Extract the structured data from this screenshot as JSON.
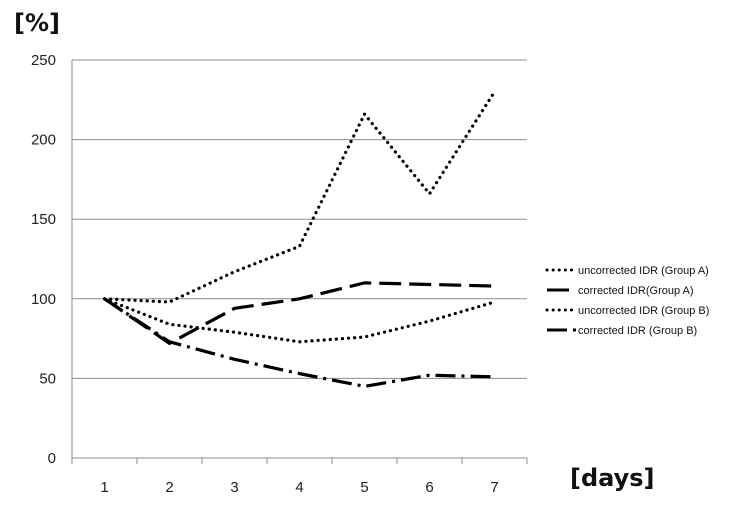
{
  "chart_data": {
    "type": "line",
    "ylabel": "[%]",
    "xlabel": "[days]",
    "categories": [
      "1",
      "2",
      "3",
      "4",
      "5",
      "6",
      "7"
    ],
    "ylim": [
      0,
      250
    ],
    "yticks": [
      "0",
      "50",
      "100",
      "150",
      "200",
      "250"
    ],
    "grid": "horizontal",
    "legend_position": "right",
    "series": [
      {
        "name": "uncorrected IDR (Group A)",
        "style": "dotted",
        "color": "#000000",
        "values": [
          100,
          98,
          117,
          133,
          216,
          166,
          230
        ]
      },
      {
        "name": "corrected IDR(Group A)",
        "style": "solid",
        "color": "#000000",
        "values": [
          100,
          72,
          94,
          100,
          110,
          109,
          108
        ]
      },
      {
        "name": "uncorrected IDR (Group B)",
        "style": "dotted",
        "color": "#000000",
        "values": [
          100,
          84,
          79,
          73,
          76,
          86,
          98
        ]
      },
      {
        "name": "corrected IDR (Group B)",
        "style": "dashdot",
        "color": "#000000",
        "values": [
          100,
          73,
          62,
          53,
          45,
          52,
          51
        ]
      }
    ]
  }
}
